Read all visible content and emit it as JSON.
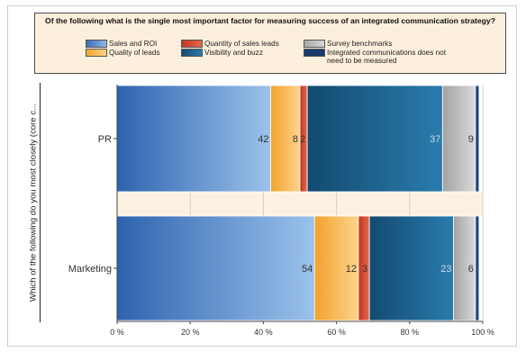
{
  "chart_data": {
    "type": "bar",
    "orientation": "horizontal",
    "stacked": true,
    "title": "Of the following what is the single most important factor for measuring success of an integrated communication strategy?",
    "ylabel": "Which of the following do you most closely (core c...",
    "xlim": [
      0,
      100
    ],
    "xticks": [
      "0 %",
      "20 %",
      "40 %",
      "60 %",
      "80 %",
      "100 %"
    ],
    "categories": [
      "PR",
      "Marketing"
    ],
    "legend_position": "top",
    "series": [
      {
        "name": "Sales and ROI",
        "color": "#4a7fc6",
        "values": [
          42,
          54
        ],
        "labels": [
          "42",
          "54"
        ]
      },
      {
        "name": "Quality of leads",
        "color": "#f5b245",
        "values": [
          8,
          12
        ],
        "labels": [
          "8",
          "12"
        ]
      },
      {
        "name": "Quantity of sales leads",
        "color": "#d2442c",
        "values": [
          2,
          3
        ],
        "labels": [
          "2",
          "3"
        ]
      },
      {
        "name": "Visibility and buzz",
        "color": "#1c5c86",
        "values": [
          37,
          23
        ],
        "labels": [
          "37",
          "23"
        ]
      },
      {
        "name": "Survey benchmarks",
        "color": "#b8b8b8",
        "values": [
          9,
          6
        ],
        "labels": [
          "9",
          "6"
        ]
      },
      {
        "name": "Integrated communications does not need to be measured",
        "color": "#1a3a6b",
        "values": [
          1,
          1
        ],
        "labels": [
          "",
          ""
        ]
      }
    ]
  }
}
